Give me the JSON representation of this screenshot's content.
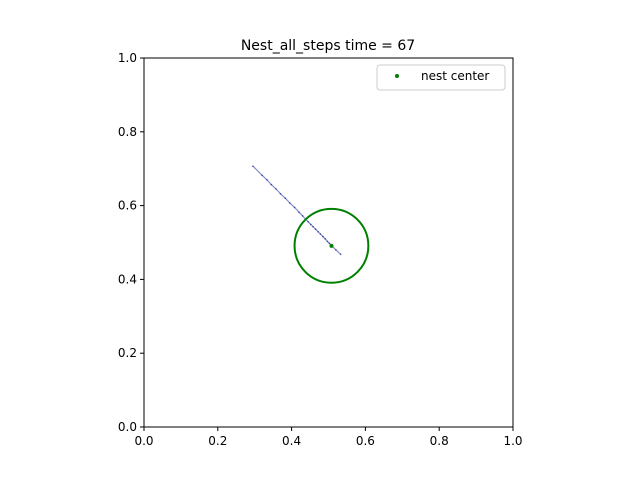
{
  "chart_data": {
    "type": "scatter",
    "title": "Nest_all_steps time = 67",
    "xlabel": "",
    "ylabel": "",
    "xlim": [
      0.0,
      1.0
    ],
    "ylim": [
      0.0,
      1.0
    ],
    "xticks": [
      "0.0",
      "0.2",
      "0.4",
      "0.6",
      "0.8",
      "1.0"
    ],
    "yticks": [
      "0.0",
      "0.2",
      "0.4",
      "0.6",
      "0.8",
      "1.0"
    ],
    "grid": false,
    "legend_position": "top-right",
    "series": [
      {
        "name": "nest center",
        "marker": "point",
        "color": "#008000",
        "points": [
          [
            0.508,
            0.491
          ]
        ]
      },
      {
        "marker": "point",
        "color": "#1f2f9a",
        "points": [
          [
            0.295,
            0.707
          ],
          [
            0.32,
            0.682
          ],
          [
            0.333,
            0.67
          ],
          [
            0.345,
            0.657
          ],
          [
            0.358,
            0.645
          ],
          [
            0.37,
            0.632
          ],
          [
            0.383,
            0.62
          ],
          [
            0.395,
            0.607
          ],
          [
            0.408,
            0.595
          ],
          [
            0.42,
            0.582
          ],
          [
            0.43,
            0.572
          ],
          [
            0.438,
            0.563
          ],
          [
            0.445,
            0.556
          ],
          [
            0.452,
            0.549
          ],
          [
            0.458,
            0.543
          ],
          [
            0.465,
            0.536
          ],
          [
            0.472,
            0.529
          ],
          [
            0.478,
            0.523
          ],
          [
            0.485,
            0.516
          ],
          [
            0.491,
            0.51
          ],
          [
            0.497,
            0.503
          ],
          [
            0.502,
            0.498
          ],
          [
            0.506,
            0.494
          ],
          [
            0.51,
            0.49
          ],
          [
            0.52,
            0.48
          ],
          [
            0.533,
            0.468
          ]
        ]
      }
    ],
    "shapes": [
      {
        "type": "circle",
        "center": [
          0.508,
          0.491
        ],
        "radius": 0.1,
        "color": "#008000"
      }
    ]
  }
}
